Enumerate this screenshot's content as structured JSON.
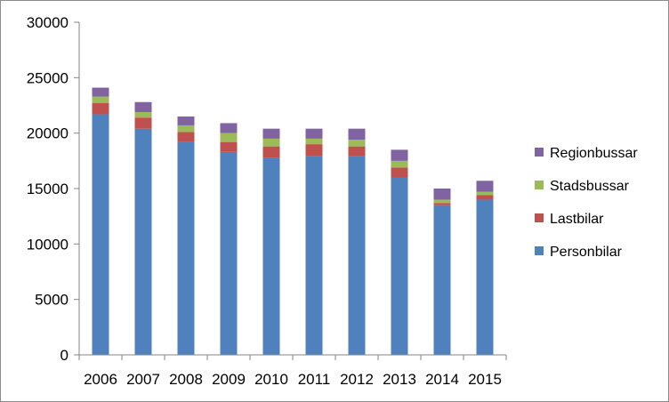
{
  "chart_data": {
    "type": "bar",
    "stacked": true,
    "categories": [
      "2006",
      "2007",
      "2008",
      "2009",
      "2010",
      "2011",
      "2012",
      "2013",
      "2014",
      "2015"
    ],
    "series": [
      {
        "name": "Personbilar",
        "color": "#4f81bd",
        "values": [
          21700,
          20400,
          19200,
          18300,
          17800,
          17900,
          17900,
          16000,
          13500,
          14000
        ]
      },
      {
        "name": "Lastbilar",
        "color": "#c0504d",
        "values": [
          1000,
          1000,
          900,
          900,
          1000,
          1100,
          900,
          900,
          200,
          400
        ]
      },
      {
        "name": "Stadsbussar",
        "color": "#9bbb59",
        "values": [
          600,
          500,
          600,
          800,
          700,
          500,
          600,
          600,
          300,
          300
        ]
      },
      {
        "name": "Regionbussar",
        "color": "#8064a2",
        "values": [
          800,
          900,
          800,
          900,
          900,
          900,
          1000,
          1000,
          1000,
          1000
        ]
      }
    ],
    "title": "",
    "xlabel": "",
    "ylabel": "",
    "ylim": [
      0,
      30000
    ],
    "yticks": [
      "0",
      "5000",
      "10000",
      "15000",
      "20000",
      "25000",
      "30000"
    ],
    "grid": false,
    "legend": "right"
  }
}
